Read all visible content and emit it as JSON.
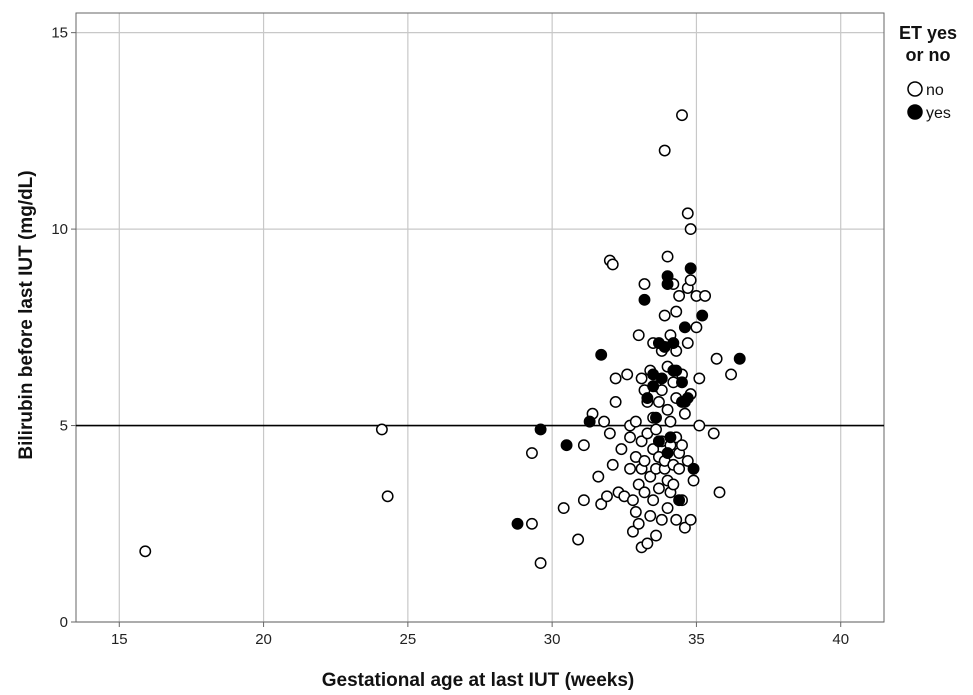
{
  "chart_data": {
    "type": "scatter",
    "xlabel": "Gestational age at last IUT (weeks)",
    "ylabel": "Bilirubin before last IUT (mg/dL)",
    "xlim": [
      13.5,
      41.5
    ],
    "ylim": [
      0,
      15.5
    ],
    "xticks": [
      15,
      20,
      25,
      30,
      35,
      40
    ],
    "yticks": [
      0,
      5,
      10,
      15
    ],
    "grid": true,
    "reference_line_y": 5,
    "legend": {
      "title_lines": [
        "ET yes",
        "or no"
      ],
      "placement": "top-right",
      "items": [
        {
          "label": "no",
          "marker": "open-circle"
        },
        {
          "label": "yes",
          "marker": "filled-circle"
        }
      ]
    },
    "series": [
      {
        "name": "no",
        "marker": "open",
        "points": [
          [
            15.9,
            1.8
          ],
          [
            24.1,
            4.9
          ],
          [
            24.3,
            3.2
          ],
          [
            29.3,
            4.3
          ],
          [
            29.3,
            2.5
          ],
          [
            29.6,
            1.5
          ],
          [
            30.4,
            2.9
          ],
          [
            30.9,
            2.1
          ],
          [
            31.1,
            3.1
          ],
          [
            31.1,
            4.5
          ],
          [
            31.4,
            5.3
          ],
          [
            31.6,
            3.7
          ],
          [
            31.7,
            3.0
          ],
          [
            31.8,
            5.1
          ],
          [
            31.9,
            3.2
          ],
          [
            32.0,
            4.8
          ],
          [
            32.0,
            9.2
          ],
          [
            32.1,
            9.1
          ],
          [
            32.1,
            4.0
          ],
          [
            32.2,
            5.6
          ],
          [
            32.2,
            6.2
          ],
          [
            32.3,
            3.3
          ],
          [
            32.4,
            4.4
          ],
          [
            32.5,
            3.2
          ],
          [
            32.6,
            6.3
          ],
          [
            32.7,
            5.0
          ],
          [
            32.7,
            4.7
          ],
          [
            32.7,
            3.9
          ],
          [
            32.8,
            3.1
          ],
          [
            32.8,
            2.3
          ],
          [
            32.9,
            2.8
          ],
          [
            32.9,
            4.2
          ],
          [
            32.9,
            5.1
          ],
          [
            33.0,
            3.5
          ],
          [
            33.0,
            2.5
          ],
          [
            33.0,
            7.3
          ],
          [
            33.1,
            4.6
          ],
          [
            33.1,
            6.2
          ],
          [
            33.1,
            3.9
          ],
          [
            33.1,
            1.9
          ],
          [
            33.2,
            8.6
          ],
          [
            33.2,
            5.9
          ],
          [
            33.2,
            4.1
          ],
          [
            33.2,
            3.3
          ],
          [
            33.3,
            2.0
          ],
          [
            33.3,
            4.8
          ],
          [
            33.3,
            5.6
          ],
          [
            33.4,
            6.4
          ],
          [
            33.4,
            3.7
          ],
          [
            33.4,
            2.7
          ],
          [
            33.5,
            4.4
          ],
          [
            33.5,
            7.1
          ],
          [
            33.5,
            5.2
          ],
          [
            33.5,
            3.1
          ],
          [
            33.6,
            3.9
          ],
          [
            33.6,
            6.0
          ],
          [
            33.6,
            4.9
          ],
          [
            33.6,
            2.2
          ],
          [
            33.7,
            4.2
          ],
          [
            33.7,
            5.6
          ],
          [
            33.7,
            3.4
          ],
          [
            33.8,
            6.9
          ],
          [
            33.8,
            4.6
          ],
          [
            33.8,
            2.6
          ],
          [
            33.8,
            5.9
          ],
          [
            33.9,
            12.0
          ],
          [
            33.9,
            3.9
          ],
          [
            33.9,
            7.8
          ],
          [
            33.9,
            4.1
          ],
          [
            34.0,
            9.3
          ],
          [
            34.0,
            5.4
          ],
          [
            34.0,
            3.6
          ],
          [
            34.0,
            6.5
          ],
          [
            34.0,
            2.9
          ],
          [
            34.1,
            4.5
          ],
          [
            34.1,
            7.3
          ],
          [
            34.1,
            5.1
          ],
          [
            34.1,
            3.3
          ],
          [
            34.2,
            6.1
          ],
          [
            34.2,
            4.0
          ],
          [
            34.2,
            8.6
          ],
          [
            34.2,
            3.5
          ],
          [
            34.3,
            5.7
          ],
          [
            34.3,
            4.7
          ],
          [
            34.3,
            6.9
          ],
          [
            34.3,
            2.6
          ],
          [
            34.3,
            7.9
          ],
          [
            34.4,
            3.9
          ],
          [
            34.4,
            4.3
          ],
          [
            34.4,
            8.3
          ],
          [
            34.5,
            12.9
          ],
          [
            34.5,
            6.3
          ],
          [
            34.5,
            4.5
          ],
          [
            34.5,
            3.1
          ],
          [
            34.6,
            5.3
          ],
          [
            34.6,
            2.4
          ],
          [
            34.7,
            4.1
          ],
          [
            34.7,
            7.1
          ],
          [
            34.7,
            8.5
          ],
          [
            34.7,
            10.4
          ],
          [
            34.8,
            10.0
          ],
          [
            34.8,
            8.7
          ],
          [
            34.8,
            5.8
          ],
          [
            34.8,
            2.6
          ],
          [
            34.9,
            3.6
          ],
          [
            35.0,
            7.5
          ],
          [
            35.0,
            8.3
          ],
          [
            35.1,
            6.2
          ],
          [
            35.1,
            5.0
          ],
          [
            35.3,
            8.3
          ],
          [
            35.6,
            4.8
          ],
          [
            35.7,
            6.7
          ],
          [
            35.8,
            3.3
          ],
          [
            36.2,
            6.3
          ]
        ]
      },
      {
        "name": "yes",
        "marker": "filled",
        "points": [
          [
            28.8,
            2.5
          ],
          [
            29.6,
            4.9
          ],
          [
            30.5,
            4.5
          ],
          [
            31.3,
            5.1
          ],
          [
            31.7,
            6.8
          ],
          [
            33.2,
            8.2
          ],
          [
            33.3,
            5.7
          ],
          [
            33.5,
            6.3
          ],
          [
            33.5,
            6.0
          ],
          [
            33.6,
            5.2
          ],
          [
            33.7,
            4.6
          ],
          [
            33.7,
            7.1
          ],
          [
            33.8,
            6.2
          ],
          [
            33.9,
            7.0
          ],
          [
            34.0,
            4.3
          ],
          [
            34.0,
            8.8
          ],
          [
            34.0,
            8.6
          ],
          [
            34.1,
            4.7
          ],
          [
            34.2,
            7.1
          ],
          [
            34.2,
            6.4
          ],
          [
            34.3,
            6.4
          ],
          [
            34.4,
            3.1
          ],
          [
            34.5,
            5.6
          ],
          [
            34.5,
            6.1
          ],
          [
            34.6,
            5.6
          ],
          [
            34.6,
            7.5
          ],
          [
            34.7,
            5.7
          ],
          [
            34.8,
            9.0
          ],
          [
            34.9,
            3.9
          ],
          [
            35.2,
            7.8
          ],
          [
            36.5,
            6.7
          ]
        ]
      }
    ]
  }
}
